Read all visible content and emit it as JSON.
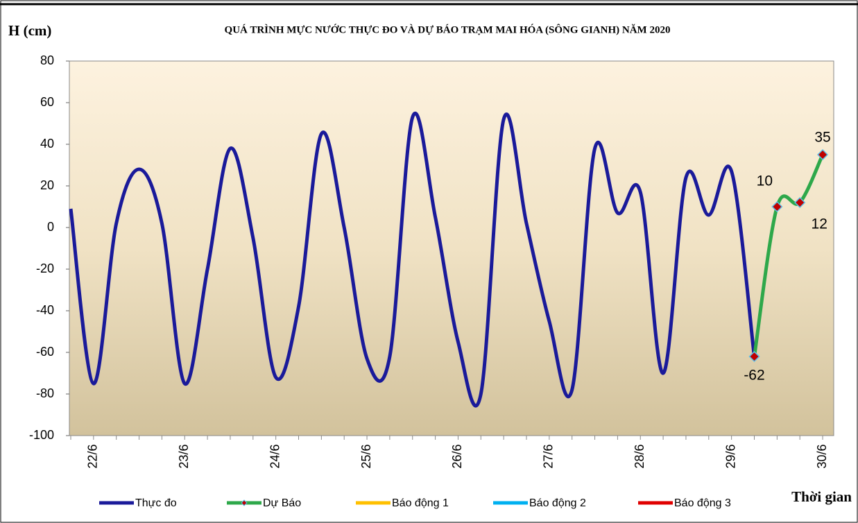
{
  "chart_data": {
    "type": "line",
    "title": "QUÁ TRÌNH MỰC NƯỚC THỰC ĐO VÀ DỰ BÁO TRẠM MAI HÓA (SÔNG GIANH) NĂM 2020",
    "y_label": "H (cm)",
    "x_label": "Thời gian",
    "categories": [
      null,
      "22/6",
      null,
      null,
      null,
      "23/6",
      null,
      null,
      null,
      "24/6",
      null,
      null,
      null,
      "25/6",
      null,
      null,
      null,
      "26/6",
      null,
      null,
      null,
      "27/6",
      null,
      null,
      null,
      "28/6",
      null,
      null,
      null,
      "29/6",
      null,
      null,
      null,
      "30/6"
    ],
    "series": [
      {
        "name": "Thực đo",
        "color": "#1a1a9a",
        "values": [
          9,
          -75,
          2,
          28,
          2,
          -75,
          -20,
          38,
          -5,
          -72,
          -38,
          45,
          0,
          -63,
          -62,
          53,
          5,
          -55,
          -80,
          52,
          2,
          -45,
          -78,
          38,
          7,
          17,
          -70,
          24,
          6,
          27,
          -62,
          null,
          null,
          null
        ]
      },
      {
        "name": "Dự Báo",
        "color": "#2ea84a",
        "markers": true,
        "values": [
          null,
          null,
          null,
          null,
          null,
          null,
          null,
          null,
          null,
          null,
          null,
          null,
          null,
          null,
          null,
          null,
          null,
          null,
          null,
          null,
          null,
          null,
          null,
          null,
          null,
          null,
          null,
          null,
          null,
          null,
          -62,
          10,
          12,
          35
        ],
        "data_labels": true
      },
      {
        "name": "Báo động 1",
        "color": "#ffc000"
      },
      {
        "name": "Báo động 2",
        "color": "#00b0f0"
      },
      {
        "name": "Báo động 3",
        "color": "#e00000"
      }
    ],
    "ylim": [
      -100,
      80
    ],
    "yticks": [
      -100,
      -80,
      -60,
      -40,
      -20,
      0,
      20,
      40,
      60,
      80
    ]
  }
}
